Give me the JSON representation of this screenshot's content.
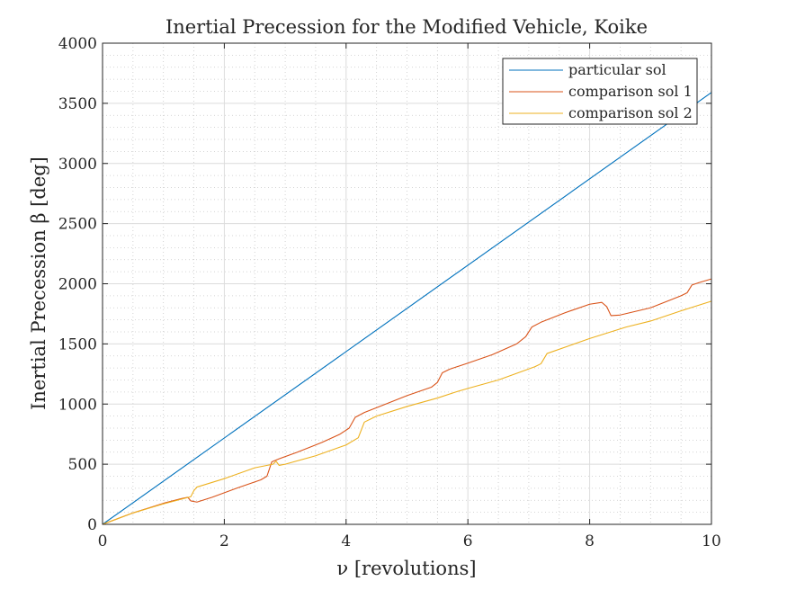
{
  "chart_data": {
    "type": "line",
    "title": "Inertial Precession for the Modified Vehicle, Koike",
    "xlabel": "ν [revolutions]",
    "ylabel": "Inertial Precession β [deg]",
    "xlim": [
      0,
      10
    ],
    "ylim": [
      0,
      4000
    ],
    "xticks": [
      0,
      2,
      4,
      6,
      8,
      10
    ],
    "yticks": [
      0,
      500,
      1000,
      1500,
      2000,
      2500,
      3000,
      3500,
      4000
    ],
    "grid": true,
    "minor_grid": true,
    "legend_position": "top-right",
    "series": [
      {
        "name": "particular sol",
        "color": "#0072BD",
        "x": [
          0,
          10
        ],
        "y": [
          0,
          3590
        ]
      },
      {
        "name": "comparison sol 1",
        "color": "#D95319",
        "x": [
          0,
          0.5,
          1.0,
          1.3,
          1.4,
          1.45,
          1.55,
          1.8,
          2.2,
          2.6,
          2.7,
          2.78,
          2.9,
          3.2,
          3.6,
          3.9,
          4.05,
          4.15,
          4.3,
          4.6,
          5.0,
          5.4,
          5.5,
          5.58,
          5.7,
          6.0,
          6.4,
          6.8,
          6.95,
          7.05,
          7.2,
          7.6,
          8.0,
          8.2,
          8.28,
          8.35,
          8.5,
          9.0,
          9.5,
          9.6,
          9.68,
          9.8,
          10.0
        ],
        "y": [
          0,
          95,
          175,
          215,
          225,
          195,
          185,
          225,
          300,
          370,
          400,
          520,
          545,
          600,
          680,
          750,
          800,
          890,
          930,
          990,
          1070,
          1140,
          1180,
          1260,
          1290,
          1340,
          1410,
          1500,
          1560,
          1640,
          1680,
          1760,
          1830,
          1845,
          1810,
          1735,
          1740,
          1800,
          1900,
          1925,
          1990,
          2010,
          2040
        ]
      },
      {
        "name": "comparison sol 2",
        "color": "#EDB120",
        "x": [
          0,
          0.5,
          1.0,
          1.45,
          1.5,
          1.55,
          2.0,
          2.5,
          2.8,
          2.85,
          2.9,
          3.0,
          3.5,
          4.0,
          4.2,
          4.3,
          4.5,
          5.0,
          5.5,
          5.8,
          6.0,
          6.5,
          7.1,
          7.2,
          7.3,
          8.0,
          8.6,
          9.0,
          9.5,
          10.0
        ],
        "y": [
          0,
          95,
          170,
          230,
          280,
          310,
          380,
          470,
          500,
          525,
          490,
          500,
          570,
          660,
          720,
          850,
          900,
          980,
          1050,
          1100,
          1130,
          1200,
          1310,
          1335,
          1420,
          1545,
          1640,
          1690,
          1775,
          1855
        ]
      }
    ]
  }
}
